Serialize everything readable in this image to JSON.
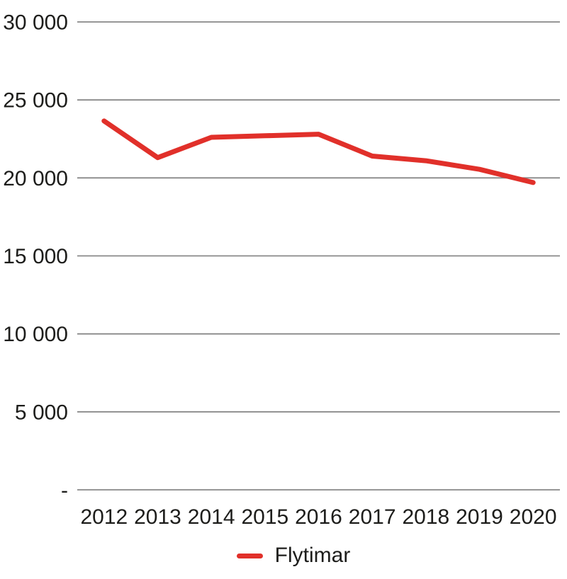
{
  "chart_data": {
    "type": "line",
    "title": "",
    "xlabel": "",
    "ylabel": "",
    "categories": [
      "2012",
      "2013",
      "2014",
      "2015",
      "2016",
      "2017",
      "2018",
      "2019",
      "2020"
    ],
    "series": [
      {
        "name": "Flytimar",
        "color": "#e1302a",
        "values": [
          23650,
          21300,
          22600,
          22700,
          22800,
          21400,
          21100,
          20550,
          19700
        ]
      }
    ],
    "ylim": [
      0,
      30000
    ],
    "ytick_step": 5000,
    "ytick_labels": [
      "-",
      "5 000",
      "10 000",
      "15 000",
      "20 000",
      "25 000",
      "30 000"
    ],
    "grid": true,
    "legend_position": "bottom"
  },
  "legend": {
    "items": [
      {
        "label": "Flytimar",
        "color": "#e1302a"
      }
    ]
  },
  "colors": {
    "line": "#e1302a",
    "gridline": "#888888",
    "text": "#1d1d1b",
    "background": "#ffffff"
  }
}
